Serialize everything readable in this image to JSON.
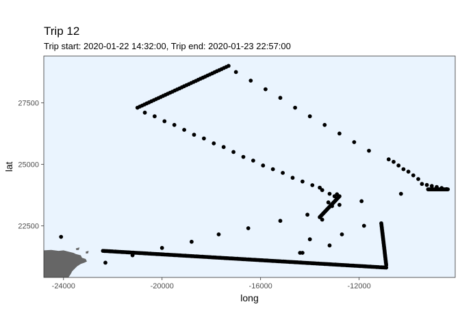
{
  "chart_data": {
    "type": "scatter",
    "title": "Trip 12",
    "subtitle": "Trip start: 2020-01-22 14:32:00, Trip end: 2020-01-23 22:57:00",
    "xlabel": "long",
    "ylabel": "lat",
    "xlim": [
      -24800,
      -8100
    ],
    "ylim": [
      20400,
      29400
    ],
    "x_ticks": [
      -24000,
      -20000,
      -16000,
      -12000
    ],
    "y_ticks": [
      22500,
      25000,
      27500
    ],
    "x_tick_labels": [
      "-24000",
      "-20000",
      "-16000",
      "-12000"
    ],
    "y_tick_labels": [
      "22500",
      "25000",
      "27500"
    ],
    "panel_background": "#eaf4fe",
    "land_color": "#666666",
    "point_color": "#000000",
    "grid": false,
    "segments": [
      {
        "from": [
          -22400,
          21480
        ],
        "to": [
          -10900,
          20800
        ],
        "n": 180
      },
      {
        "from": [
          -21000,
          27300
        ],
        "to": [
          -17300,
          29000
        ],
        "n": 40
      },
      {
        "from": [
          -10900,
          20900
        ],
        "to": [
          -11100,
          22600
        ],
        "n": 30
      },
      {
        "from": [
          -13600,
          22850
        ],
        "to": [
          -12800,
          23700
        ],
        "n": 25
      },
      {
        "from": [
          -9200,
          23980
        ],
        "to": [
          -8400,
          23980
        ],
        "n": 25
      },
      {
        "from": [
          -9450,
          24200
        ],
        "to": [
          -8450,
          23990
        ],
        "n": 6
      }
    ],
    "points": [
      [
        -17000,
        28750
      ],
      [
        -16400,
        28400
      ],
      [
        -15800,
        28050
      ],
      [
        -15200,
        27700
      ],
      [
        -14600,
        27300
      ],
      [
        -14000,
        26950
      ],
      [
        -13400,
        26600
      ],
      [
        -12800,
        26250
      ],
      [
        -12200,
        25900
      ],
      [
        -11600,
        25550
      ],
      [
        -10800,
        25200
      ],
      [
        -10600,
        25100
      ],
      [
        -10400,
        24950
      ],
      [
        -10200,
        24800
      ],
      [
        -10000,
        24700
      ],
      [
        -9800,
        24550
      ],
      [
        -9600,
        24400
      ],
      [
        -20700,
        27100
      ],
      [
        -20300,
        26950
      ],
      [
        -19900,
        26750
      ],
      [
        -19500,
        26600
      ],
      [
        -19100,
        26400
      ],
      [
        -18700,
        26200
      ],
      [
        -18300,
        26050
      ],
      [
        -17900,
        25850
      ],
      [
        -17500,
        25700
      ],
      [
        -17100,
        25500
      ],
      [
        -16700,
        25300
      ],
      [
        -16300,
        25150
      ],
      [
        -15900,
        24950
      ],
      [
        -15500,
        24800
      ],
      [
        -15100,
        24650
      ],
      [
        -14700,
        24450
      ],
      [
        -14300,
        24300
      ],
      [
        -13900,
        24150
      ],
      [
        -13500,
        23950
      ],
      [
        -13200,
        23800
      ],
      [
        -13000,
        23700
      ],
      [
        -12900,
        23780
      ],
      [
        -24100,
        22050
      ],
      [
        -22300,
        21000
      ],
      [
        -21200,
        21300
      ],
      [
        -20000,
        21600
      ],
      [
        -18800,
        21850
      ],
      [
        -17700,
        22150
      ],
      [
        -16500,
        22400
      ],
      [
        -15200,
        22700
      ],
      [
        -14100,
        22950
      ],
      [
        -13500,
        22750
      ],
      [
        -12800,
        23350
      ],
      [
        -12700,
        22150
      ],
      [
        -11800,
        22500
      ],
      [
        -11900,
        23500
      ],
      [
        -10300,
        23800
      ],
      [
        -14400,
        21400
      ],
      [
        -14300,
        21400
      ],
      [
        -14000,
        21950
      ],
      [
        -13200,
        21700
      ],
      [
        -13600,
        24050
      ],
      [
        -13250,
        23450
      ],
      [
        -13100,
        23300
      ]
    ],
    "land_polygon": [
      [
        -24800,
        20400
      ],
      [
        -24800,
        21500
      ],
      [
        -24500,
        21520
      ],
      [
        -24200,
        21480
      ],
      [
        -24000,
        21500
      ],
      [
        -23800,
        21450
      ],
      [
        -23600,
        21400
      ],
      [
        -23500,
        21350
      ],
      [
        -23300,
        21300
      ],
      [
        -23250,
        21200
      ],
      [
        -23100,
        21150
      ],
      [
        -23050,
        21050
      ],
      [
        -23150,
        21000
      ],
      [
        -23300,
        20950
      ],
      [
        -23450,
        20850
      ],
      [
        -23550,
        20750
      ],
      [
        -23650,
        20650
      ],
      [
        -23700,
        20550
      ],
      [
        -23800,
        20400
      ]
    ],
    "land_islands": [
      [
        [
          -23500,
          21580
        ],
        [
          -23350,
          21620
        ],
        [
          -23380,
          21520
        ],
        [
          -23480,
          21510
        ]
      ],
      [
        [
          -23100,
          21450
        ],
        [
          -22980,
          21480
        ],
        [
          -23000,
          21380
        ],
        [
          -23090,
          21370
        ]
      ]
    ]
  }
}
